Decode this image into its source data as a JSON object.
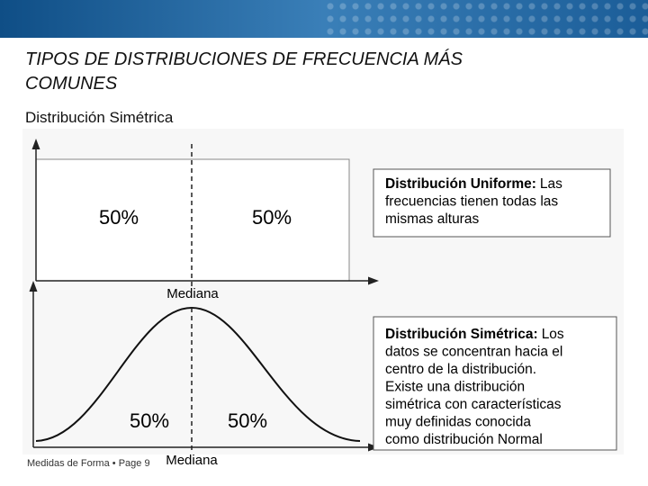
{
  "header": {
    "title_lines": [
      "TIPOS DE DISTRIBUCIONES DE FRECUENCIA MÁS",
      "COMUNES"
    ],
    "subtitle": "Distribución Simétrica"
  },
  "figure": {
    "uniform": {
      "left_label": "50%",
      "right_label": "50%",
      "axis_label": "Mediana",
      "box": {
        "label": "Distribución Uniforme:",
        "lines": [
          "Las",
          "frecuencias tienen todas las",
          "mismas alturas"
        ]
      }
    },
    "symmetric": {
      "left_label": "50%",
      "right_label": "50%",
      "axis_label": "Mediana",
      "box": {
        "label": "Distribución Simétrica:",
        "lines": [
          "Los",
          "datos se concentran hacia el",
          "centro de la distribución.",
          "Existe una distribución",
          "simétrica con características",
          "muy definidas conocida",
          "como distribución Normal"
        ]
      }
    }
  },
  "footer": {
    "text": "Medidas de Forma",
    "separator": "•",
    "page": "Page 9"
  }
}
